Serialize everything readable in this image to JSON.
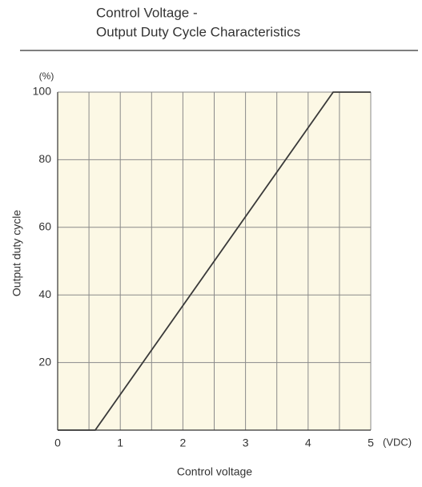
{
  "chart_data": {
    "type": "line",
    "title": [
      "Control Voltage -",
      "Output Duty Cycle Characteristics"
    ],
    "xlabel": "Control voltage",
    "ylabel": "Output duty cycle",
    "x_unit": "(VDC)",
    "y_unit": "(%)",
    "x": [
      0,
      0.6,
      4.4,
      5
    ],
    "y": [
      0,
      0,
      100,
      100
    ],
    "color": "#3a3a3a",
    "xlim": [
      0,
      5
    ],
    "xticks": [
      0,
      1,
      2,
      3,
      4,
      5
    ],
    "x_minor_ticks": [
      0.5,
      1.5,
      2.5,
      3.5,
      4.5
    ],
    "ylim": [
      0,
      100
    ],
    "yticks": [
      20,
      40,
      60,
      80,
      100
    ],
    "grid": true
  }
}
